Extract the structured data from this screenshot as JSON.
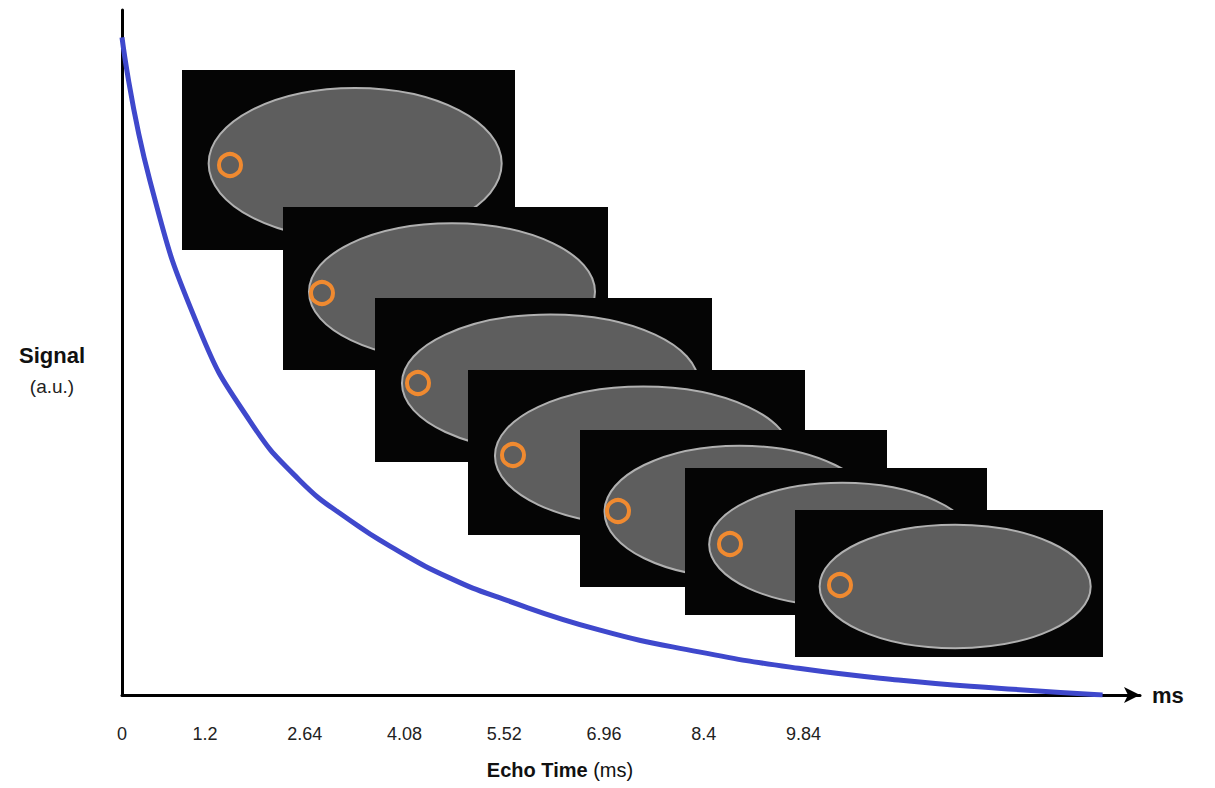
{
  "chart_data": {
    "type": "line",
    "x_label": "Echo Time (ms)",
    "x_axis_end_label": "ms",
    "y_label": "Signal (a.u.)",
    "series": [
      {
        "name": "Signal",
        "color": "#3f48cc",
        "line_style": "solid",
        "x": [
          0,
          0.4,
          1.12,
          1.84,
          2.56,
          3.29,
          4.01,
          4.73,
          5.45,
          6.89,
          8.33,
          9.77,
          11.21,
          12.65,
          14.16
        ],
        "values": [
          96,
          75.2,
          53.3,
          40.1,
          31.4,
          25.5,
          20.9,
          17.1,
          14.2,
          9.5,
          6.3,
          3.9,
          2.2,
          1.0,
          0
        ]
      }
    ],
    "xlim": [
      0,
      14.7
    ],
    "xticks": [
      0,
      1.2,
      2.64,
      4.08,
      5.52,
      6.96,
      8.4,
      9.84
    ],
    "ylim": [
      0,
      100
    ],
    "tick_labels": "x",
    "grid": false
  }
}
